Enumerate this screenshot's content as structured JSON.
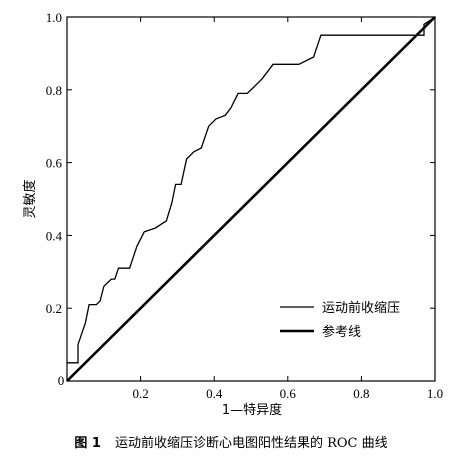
{
  "chart_data": {
    "type": "line",
    "xlabel": "1—特异度",
    "ylabel": "灵敏度",
    "xlim": [
      0,
      1
    ],
    "ylim": [
      0,
      1
    ],
    "x_ticks": [
      "0.2",
      "0.4",
      "0.6",
      "0.8",
      "1.0"
    ],
    "y_ticks": [
      "0.2",
      "0.4",
      "0.6",
      "0.8",
      "1.0"
    ],
    "origin_label": "0",
    "legend_position": "lower-right",
    "grid": false,
    "series": [
      {
        "name": "运动前收缩压",
        "style": "thin",
        "color": "#000000",
        "points": [
          [
            0,
            0.05
          ],
          [
            0.03,
            0.05
          ],
          [
            0.03,
            0.1
          ],
          [
            0.05,
            0.16
          ],
          [
            0.06,
            0.21
          ],
          [
            0.08,
            0.21
          ],
          [
            0.09,
            0.22
          ],
          [
            0.1,
            0.26
          ],
          [
            0.12,
            0.28
          ],
          [
            0.13,
            0.28
          ],
          [
            0.14,
            0.31
          ],
          [
            0.17,
            0.31
          ],
          [
            0.19,
            0.37
          ],
          [
            0.21,
            0.41
          ],
          [
            0.24,
            0.42
          ],
          [
            0.27,
            0.44
          ],
          [
            0.285,
            0.49
          ],
          [
            0.295,
            0.54
          ],
          [
            0.31,
            0.54
          ],
          [
            0.325,
            0.61
          ],
          [
            0.345,
            0.63
          ],
          [
            0.365,
            0.64
          ],
          [
            0.385,
            0.7
          ],
          [
            0.405,
            0.72
          ],
          [
            0.43,
            0.73
          ],
          [
            0.445,
            0.75
          ],
          [
            0.465,
            0.79
          ],
          [
            0.49,
            0.79
          ],
          [
            0.51,
            0.81
          ],
          [
            0.53,
            0.83
          ],
          [
            0.56,
            0.87
          ],
          [
            0.63,
            0.87
          ],
          [
            0.67,
            0.89
          ],
          [
            0.69,
            0.95
          ],
          [
            0.97,
            0.95
          ],
          [
            0.97,
            0.98
          ],
          [
            1.0,
            1.0
          ]
        ]
      },
      {
        "name": "参考线",
        "style": "thick",
        "color": "#000000",
        "points": [
          [
            0,
            0
          ],
          [
            1,
            1
          ]
        ]
      }
    ]
  },
  "caption": {
    "figure_number": "图 1",
    "text": "运动前收缩压诊断心电图阳性结果的 ROC 曲线"
  }
}
